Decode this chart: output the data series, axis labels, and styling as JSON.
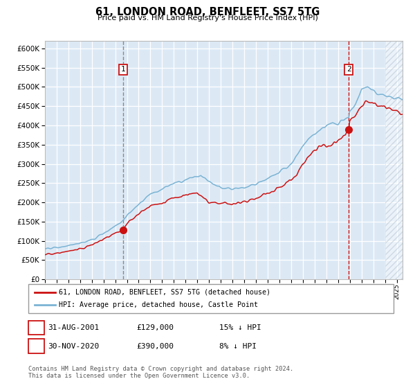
{
  "title": "61, LONDON ROAD, BENFLEET, SS7 5TG",
  "subtitle": "Price paid vs. HM Land Registry's House Price Index (HPI)",
  "ylim": [
    0,
    620000
  ],
  "yticks": [
    0,
    50000,
    100000,
    150000,
    200000,
    250000,
    300000,
    350000,
    400000,
    450000,
    500000,
    550000,
    600000
  ],
  "bg_color": "#dce9f5",
  "hpi_color": "#7ab3d4",
  "price_color": "#cc1111",
  "annotation1_date": "31-AUG-2001",
  "annotation1_price": "£129,000",
  "annotation1_hpi": "15% ↓ HPI",
  "annotation1_year": 2001.67,
  "annotation1_value": 129000,
  "annotation2_date": "30-NOV-2020",
  "annotation2_price": "£390,000",
  "annotation2_hpi": "8% ↓ HPI",
  "annotation2_year": 2020.92,
  "annotation2_value": 390000,
  "legend_line1": "61, LONDON ROAD, BENFLEET, SS7 5TG (detached house)",
  "legend_line2": "HPI: Average price, detached house, Castle Point",
  "footnote": "Contains HM Land Registry data © Crown copyright and database right 2024.\nThis data is licensed under the Open Government Licence v3.0.",
  "xmin": 1995,
  "xmax": 2025.5
}
